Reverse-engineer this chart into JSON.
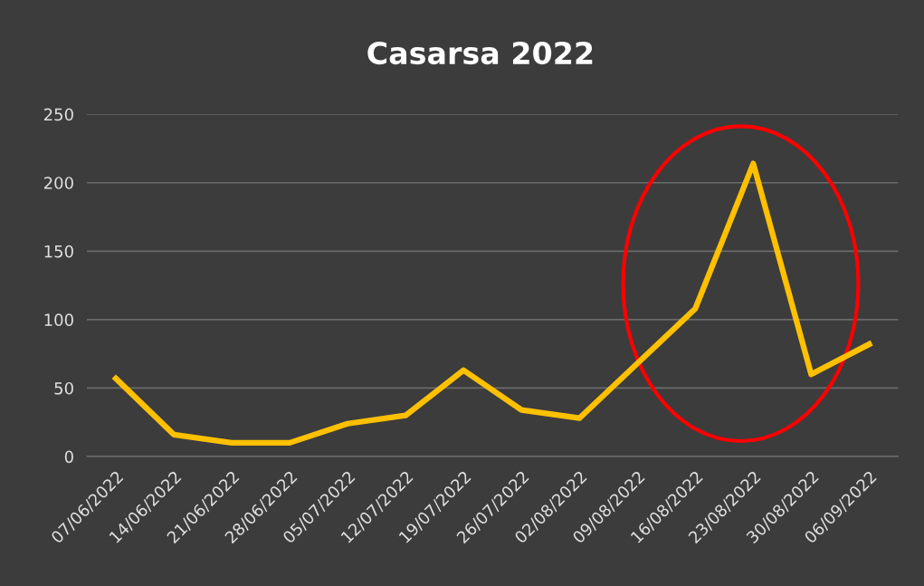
{
  "chart_data": {
    "type": "line",
    "title": "Casarsa 2022",
    "categories": [
      "07/06/2022",
      "14/06/2022",
      "21/06/2022",
      "28/06/2022",
      "05/07/2022",
      "12/07/2022",
      "19/07/2022",
      "26/07/2022",
      "02/08/2022",
      "09/08/2022",
      "16/08/2022",
      "23/08/2022",
      "30/08/2022",
      "06/09/2022"
    ],
    "series": [
      {
        "color": "#ffc000",
        "values": [
          57,
          16,
          10,
          10,
          24,
          30,
          63,
          34,
          28,
          68,
          108,
          214,
          60,
          82
        ]
      }
    ],
    "ylim": [
      0,
      250
    ],
    "yticks": [
      0,
      50,
      100,
      150,
      200,
      250
    ],
    "grid": "y",
    "legend": false,
    "marker": "none",
    "line_style": "solid"
  }
}
